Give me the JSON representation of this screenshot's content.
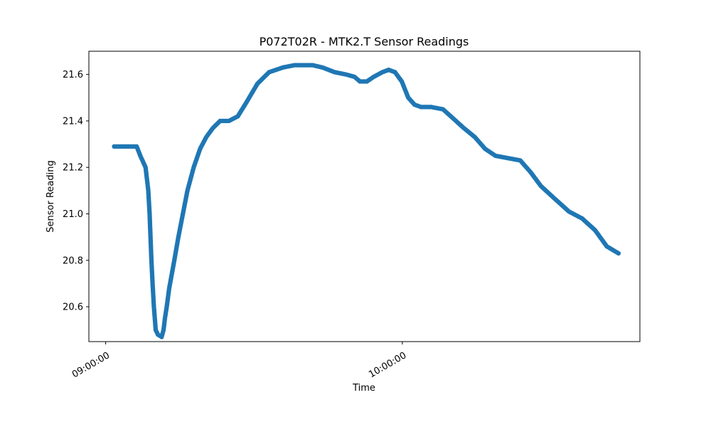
{
  "chart_data": {
    "type": "scatter",
    "title": "P072T02R - MTK2.T Sensor Readings",
    "xlabel": "Time",
    "ylabel": "Sensor Reading",
    "x_tick_labels": [
      "09:00:00",
      "10:00:00"
    ],
    "y_tick_labels": [
      "20.6",
      "20.8",
      "21.0",
      "21.2",
      "21.4",
      "21.6"
    ],
    "y_ticks": [
      20.6,
      20.8,
      21.0,
      21.2,
      21.4,
      21.6
    ],
    "xlim": [
      "08:56:36",
      "10:48:03"
    ],
    "ylim": [
      20.45,
      21.7
    ],
    "grid": false,
    "legend": "none",
    "color": "#1f77b4",
    "series": [
      {
        "x": [
          "09:01:43",
          "09:04:38",
          "09:06:16",
          "09:07:00",
          "09:08:04",
          "09:08:37",
          "09:08:53",
          "09:09:04",
          "09:09:15",
          "09:09:29",
          "09:09:45",
          "09:10:07",
          "09:10:34",
          "09:11:19",
          "09:11:42",
          "09:11:59",
          "09:12:21",
          "09:12:51",
          "09:13:53",
          "09:14:42",
          "09:15:37",
          "09:16:32",
          "09:17:48",
          "09:19:06",
          "09:20:20",
          "09:21:42",
          "09:23:09",
          "09:24:55",
          "09:26:44",
          "09:28:28",
          "09:30:41",
          "09:33:04",
          "09:35:50",
          "09:38:10",
          "09:40:00",
          "09:41:51",
          "09:43:52",
          "09:46:18",
          "09:48:37",
          "09:50:18",
          "09:51:26",
          "09:52:50",
          "09:54:13",
          "09:55:58",
          "09:57:14",
          "09:58:31",
          "09:59:53",
          "10:01:12",
          "10:02:29",
          "10:03:47",
          "10:05:50",
          "10:08:14",
          "10:10:19",
          "10:12:24",
          "10:14:41",
          "10:16:44",
          "10:18:50",
          "10:21:20",
          "10:23:51",
          "10:25:55",
          "10:28:01",
          "10:30:34",
          "10:33:42",
          "10:36:22",
          "10:38:58",
          "10:41:21",
          "10:43:43"
        ],
        "y": [
          21.29,
          21.29,
          21.29,
          21.25,
          21.2,
          21.1,
          21.0,
          20.9,
          20.8,
          20.7,
          20.6,
          20.5,
          20.48,
          20.47,
          20.5,
          20.55,
          20.6,
          20.68,
          20.8,
          20.9,
          21.0,
          21.1,
          21.2,
          21.28,
          21.33,
          21.37,
          21.4,
          21.4,
          21.42,
          21.48,
          21.56,
          21.61,
          21.63,
          21.64,
          21.64,
          21.64,
          21.63,
          21.61,
          21.6,
          21.59,
          21.57,
          21.57,
          21.59,
          21.61,
          21.62,
          21.61,
          21.57,
          21.5,
          21.47,
          21.46,
          21.46,
          21.45,
          21.41,
          21.37,
          21.33,
          21.28,
          21.25,
          21.24,
          21.23,
          21.18,
          21.12,
          21.07,
          21.01,
          20.98,
          20.93,
          20.86,
          20.83
        ]
      }
    ]
  }
}
